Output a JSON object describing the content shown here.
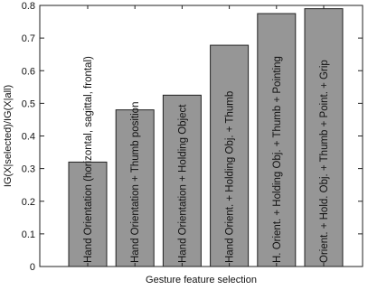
{
  "chart_data": {
    "type": "bar",
    "title": "",
    "xlabel": "Gesture feature selection",
    "ylabel": "IG(X|selected)/IG(X|all)",
    "ylim": [
      0,
      0.8
    ],
    "yticks": [
      "0",
      "0.1",
      "0.2",
      "0.3",
      "0.4",
      "0.5",
      "0.6",
      "0.7",
      "0.8"
    ],
    "grid": false,
    "bar_color": "#969696",
    "categories": [
      "Hand Orientation (horizontal, sagittal, frontal)",
      "Hand Orientation + Thumb position",
      "Hand Orientation + Holding Object",
      "Hand Orient. + Holding Obj. + Thumb",
      "H. Orient. + Holding Obj. + Thumb + Pointing",
      "Orient. + Hold. Obj. + Thumb + Point. + Grip"
    ],
    "values": [
      0.32,
      0.48,
      0.525,
      0.678,
      0.775,
      0.79
    ]
  }
}
